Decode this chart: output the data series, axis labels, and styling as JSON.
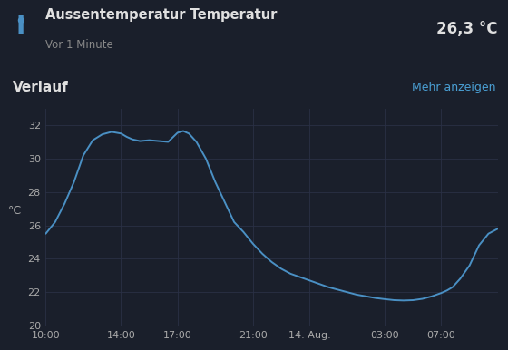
{
  "title": "Aussentemperatur Temperatur",
  "subtitle": "Vor 1 Minute",
  "current_value": "26,3 °C",
  "verlauf_label": "Verlauf",
  "mehr_anzeigen_label": "Mehr anzeigen",
  "ylabel": "°C",
  "background_color": "#1a1f2b",
  "plot_background_color": "#1a1f2b",
  "line_color": "#4a90c4",
  "grid_color": "#2a3045",
  "text_color": "#aaaaaa",
  "title_color": "#e0e0e0",
  "subtitle_color": "#888888",
  "link_color": "#4a9fd4",
  "ylim": [
    20,
    33
  ],
  "yticks": [
    20,
    22,
    24,
    26,
    28,
    30,
    32
  ],
  "xtick_labels": [
    "10:00",
    "14:00",
    "17:00",
    "21:00",
    "14. Aug.",
    "03:00",
    "07:00"
  ],
  "xtick_positions": [
    0,
    4,
    7,
    11,
    14,
    18,
    21
  ],
  "x_points": [
    0,
    0.5,
    1,
    1.5,
    2,
    2.5,
    3,
    3.5,
    4,
    4.3,
    4.6,
    5,
    5.5,
    6,
    6.5,
    7,
    7.3,
    7.6,
    8,
    8.5,
    9,
    9.5,
    10,
    10.5,
    11,
    11.5,
    12,
    12.5,
    13,
    13.5,
    14,
    14.5,
    15,
    15.5,
    16,
    16.5,
    17,
    17.5,
    18,
    18.5,
    19,
    19.5,
    20,
    20.5,
    21,
    21.3,
    21.6,
    22,
    22.5,
    23,
    23.5,
    24
  ],
  "y_points": [
    25.5,
    26.2,
    27.3,
    28.6,
    30.2,
    31.1,
    31.45,
    31.6,
    31.5,
    31.3,
    31.15,
    31.05,
    31.1,
    31.05,
    31.0,
    31.55,
    31.65,
    31.5,
    31.0,
    30.0,
    28.6,
    27.4,
    26.2,
    25.6,
    24.9,
    24.3,
    23.8,
    23.4,
    23.1,
    22.9,
    22.7,
    22.5,
    22.3,
    22.15,
    22.0,
    21.85,
    21.75,
    21.65,
    21.58,
    21.52,
    21.5,
    21.52,
    21.6,
    21.75,
    21.95,
    22.1,
    22.3,
    22.8,
    23.6,
    24.8,
    25.5,
    25.8
  ]
}
